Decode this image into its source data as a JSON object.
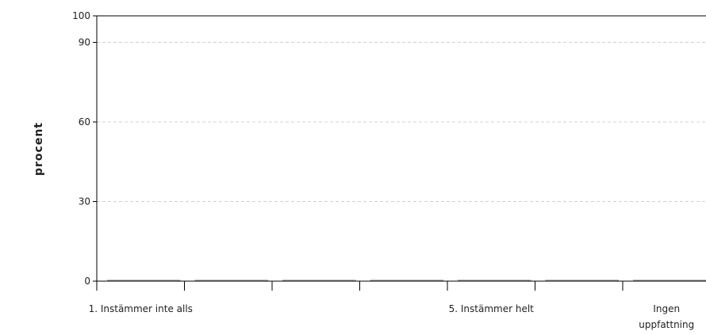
{
  "chart_data": {
    "type": "bar",
    "title": "",
    "ylabel": "procent",
    "xlabel": "",
    "ylim": [
      0,
      100
    ],
    "yticks": [
      0,
      30,
      60,
      90,
      100
    ],
    "gridlines": [
      30,
      60,
      90
    ],
    "grid": true,
    "categories": [
      "1. Instämmer inte alls",
      "",
      "",
      "",
      "5. Instämmer helt",
      "",
      "Ingen uppfattning"
    ],
    "category_label_lines": [
      [
        "1. Instämmer inte alls"
      ],
      [],
      [],
      [],
      [
        "5. Instämmer helt"
      ],
      [],
      [
        "Ingen",
        "uppfattning"
      ]
    ],
    "values": [
      0,
      0,
      0,
      0,
      0,
      0,
      0
    ],
    "colors": {
      "axis": "#000000",
      "grid": "#d0d0d0",
      "bar": "#999999"
    }
  }
}
